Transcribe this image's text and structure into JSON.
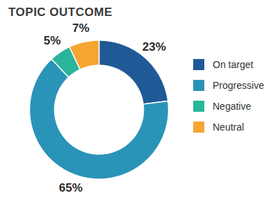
{
  "chart_data": {
    "type": "pie",
    "title": "TOPIC OUTCOME",
    "categories": [
      "On target",
      "Progressive",
      "Negative",
      "Neutral"
    ],
    "values": [
      23,
      65,
      5,
      7
    ],
    "value_labels": [
      "23%",
      "65%",
      "5%",
      "7%"
    ],
    "colors": [
      "#1f5a96",
      "#2a93b8",
      "#2ab59a",
      "#f6a532"
    ],
    "data_labels": true,
    "legend": "right"
  }
}
